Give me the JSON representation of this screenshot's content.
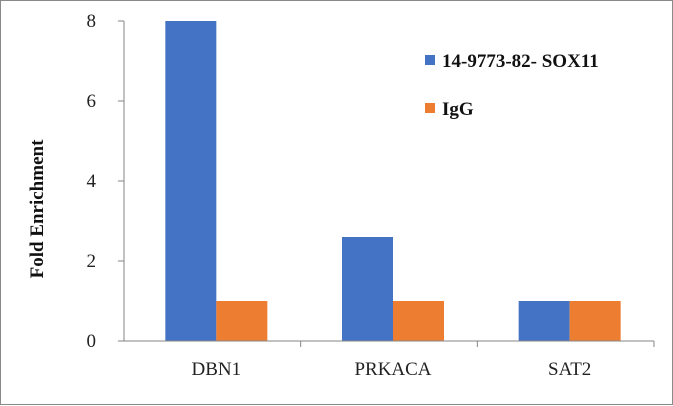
{
  "chart_data": {
    "type": "bar",
    "title": "",
    "xlabel": "",
    "ylabel": "Fold Enrichment",
    "ylim": [
      0,
      8
    ],
    "yticks": [
      "0",
      "2",
      "4",
      "6",
      "8"
    ],
    "categories": [
      "DBN1",
      "PRKACA",
      "SAT2"
    ],
    "series": [
      {
        "name": "14-9773-82- SOX11",
        "color": "#4472C4",
        "values": [
          8.0,
          2.6,
          1.0
        ]
      },
      {
        "name": "IgG",
        "color": "#ED7D31",
        "values": [
          1.0,
          1.0,
          1.0
        ]
      }
    ],
    "grid": false,
    "legend": "top-right",
    "axis_color": "#868686"
  }
}
